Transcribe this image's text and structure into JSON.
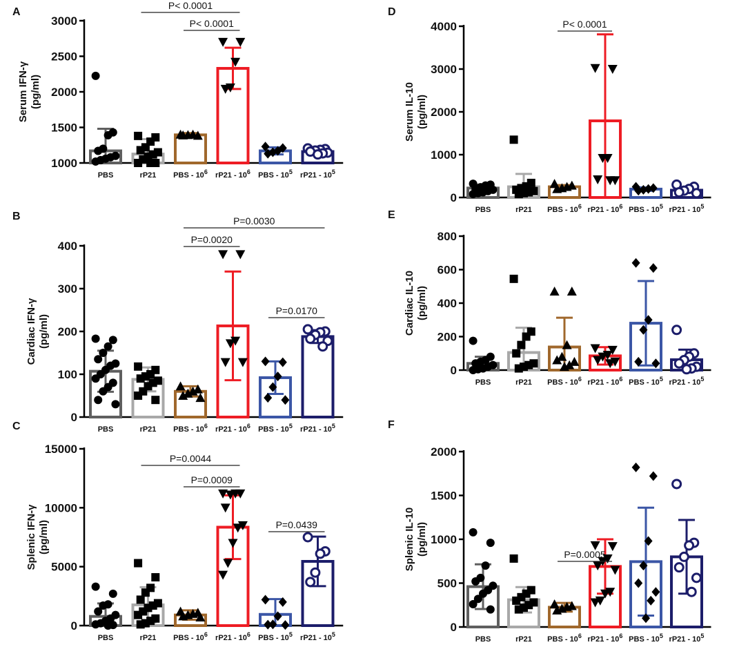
{
  "figure": {
    "categories": [
      "PBS",
      "rP21",
      "PBS - 10⁶",
      "rP21 - 10⁶",
      "PBS - 10⁵",
      "rP21 - 10⁵"
    ],
    "group_colors": [
      "#5f5f5f",
      "#a8a8a8",
      "#a0682c",
      "#ee1c24",
      "#3b56a6",
      "#1c1d6a"
    ],
    "markers": [
      "circle",
      "square",
      "triangle-up",
      "triangle-down",
      "diamond",
      "circle-open"
    ]
  },
  "chart_data": [
    {
      "id": "A",
      "type": "bar",
      "letter": "A",
      "ylabel": [
        "Serum IFN-γ",
        "(pg/ml)"
      ],
      "ylim": [
        1000,
        3000
      ],
      "yticks": [
        1000,
        1500,
        2000,
        2500,
        3000
      ],
      "base_value": 1000,
      "means": [
        1170,
        1125,
        1395,
        2330,
        1170,
        1160
      ],
      "sd": [
        310,
        210,
        25,
        290,
        50,
        40
      ],
      "points": [
        [
          2225,
          1430,
          1390,
          1200,
          1170,
          1100,
          1080,
          1060,
          1040,
          1020
        ],
        [
          1380,
          1360,
          1300,
          1220,
          1180,
          1150,
          1120,
          1090,
          1050,
          1000,
          980,
          960
        ],
        [
          1400,
          1385,
          1400,
          1395,
          1390
        ],
        [
          2700,
          2700,
          2420,
          2060,
          2040
        ],
        [
          1230,
          1210,
          1170,
          1150,
          1130
        ],
        [
          1205,
          1195,
          1185,
          1175,
          1160,
          1145,
          1135,
          1120
        ]
      ],
      "significance": [
        {
          "from": 1,
          "to": 3,
          "label": "P< 0.0001"
        },
        {
          "from": 2,
          "to": 3,
          "label": "P< 0.0001"
        }
      ]
    },
    {
      "id": "B",
      "type": "bar",
      "letter": "B",
      "ylabel": [
        "Cardiac IFN-γ",
        "(pg/ml)"
      ],
      "ylim": [
        0,
        400
      ],
      "yticks": [
        0,
        100,
        200,
        300,
        400
      ],
      "base_value": 0,
      "means": [
        107,
        88,
        60,
        213,
        92,
        188
      ],
      "sd": [
        48,
        28,
        12,
        127,
        38,
        15
      ],
      "points": [
        [
          183,
          180,
          165,
          150,
          135,
          125,
          120,
          110,
          100,
          90,
          80,
          70,
          60,
          40,
          30
        ],
        [
          118,
          110,
          100,
          95,
          90,
          85,
          80,
          72,
          60,
          50,
          40
        ],
        [
          72,
          65,
          60,
          55,
          50,
          45
        ],
        [
          380,
          380,
          178,
          172,
          128,
          128
        ],
        [
          130,
          128,
          95,
          70,
          45,
          40
        ],
        [
          205,
          200,
          198,
          192,
          183,
          178,
          165
        ]
      ],
      "significance": [
        {
          "from": 2,
          "to": 5,
          "label": "P=0.0030"
        },
        {
          "from": 2,
          "to": 3,
          "label": "P=0.0020"
        },
        {
          "from": 4,
          "to": 5,
          "label": "P=0.0170"
        }
      ]
    },
    {
      "id": "C",
      "type": "bar",
      "letter": "C",
      "ylabel": [
        "Splenic IFN-γ",
        "(pg/ml)"
      ],
      "ylim": [
        0,
        15000
      ],
      "yticks": [
        0,
        5000,
        10000,
        15000
      ],
      "base_value": 0,
      "means": [
        780,
        1760,
        900,
        8350,
        950,
        5450
      ],
      "sd": [
        1100,
        1500,
        400,
        2700,
        1300,
        2100
      ],
      "points": [
        [
          3300,
          2700,
          1800,
          1700,
          1200,
          900,
          600,
          400,
          200,
          100,
          50,
          0
        ],
        [
          5300,
          4100,
          3200,
          2800,
          2200,
          1900,
          1700,
          1500,
          1200,
          900,
          600,
          400,
          200,
          100
        ],
        [
          1200,
          1100,
          1000,
          900,
          800,
          700
        ],
        [
          11200,
          11200,
          11200,
          11100,
          10000,
          8500,
          8300,
          7000,
          5300,
          4300
        ],
        [
          2200,
          2000,
          800,
          100,
          80,
          50
        ],
        [
          7500,
          6300,
          6100,
          4500,
          3700
        ]
      ],
      "significance": [
        {
          "from": 1,
          "to": 3,
          "label": "P=0.0044"
        },
        {
          "from": 2,
          "to": 3,
          "label": "P=0.0009"
        },
        {
          "from": 4,
          "to": 5,
          "label": "P=0.0439"
        }
      ]
    },
    {
      "id": "D",
      "type": "bar",
      "letter": "D",
      "ylabel": [
        "Serum IL-10",
        "(pg/ml)"
      ],
      "ylim": [
        0,
        4000
      ],
      "yticks": [
        0,
        1000,
        2000,
        3000,
        4000
      ],
      "base_value": 0,
      "means": [
        220,
        250,
        250,
        1790,
        195,
        170
      ],
      "sd": [
        80,
        300,
        40,
        2020,
        40,
        60
      ],
      "points": [
        [
          320,
          300,
          280,
          240,
          200,
          180,
          150,
          120,
          100,
          80
        ],
        [
          1350,
          340,
          260,
          220,
          180,
          150,
          120,
          100,
          80
        ],
        [
          320,
          280,
          250,
          220,
          200
        ],
        [
          3020,
          3000,
          920,
          920,
          420,
          400,
          400
        ],
        [
          250,
          220,
          200,
          180,
          160
        ],
        [
          300,
          250,
          200,
          160,
          120,
          100
        ]
      ],
      "significance": [
        {
          "from": 2,
          "to": 3,
          "label": "P< 0.0001"
        }
      ]
    },
    {
      "id": "E",
      "type": "bar",
      "letter": "E",
      "ylabel": [
        "Cardiac IL-10",
        "(pg/ml)"
      ],
      "ylim": [
        0,
        800
      ],
      "yticks": [
        0,
        200,
        400,
        600,
        800
      ],
      "base_value": 0,
      "means": [
        40,
        105,
        138,
        85,
        280,
        62
      ],
      "sd": [
        40,
        148,
        175,
        52,
        252,
        60
      ],
      "points": [
        [
          175,
          80,
          60,
          50,
          40,
          30,
          20,
          10,
          5,
          0
        ],
        [
          545,
          230,
          200,
          150,
          100,
          40,
          30,
          20,
          10
        ],
        [
          470,
          470,
          150,
          80,
          60,
          50,
          30,
          20
        ],
        [
          130,
          120,
          90,
          80,
          60,
          50,
          40
        ],
        [
          640,
          610,
          300,
          240,
          50,
          40
        ],
        [
          240,
          100,
          80,
          60,
          40,
          20,
          10,
          5
        ]
      ],
      "significance": []
    },
    {
      "id": "F",
      "type": "bar",
      "letter": "F",
      "ylabel": [
        "Splenic IL-10",
        "(pg/ml)"
      ],
      "ylim": [
        0,
        2000
      ],
      "yticks": [
        0,
        500,
        1000,
        1500,
        2000
      ],
      "base_value": 0,
      "means": [
        460,
        310,
        225,
        690,
        745,
        800
      ],
      "sd": [
        255,
        145,
        50,
        310,
        615,
        420
      ],
      "points": [
        [
          1080,
          960,
          700,
          560,
          520,
          470,
          420,
          380,
          320,
          260,
          200
        ],
        [
          780,
          420,
          380,
          340,
          300,
          280,
          250,
          220,
          200
        ],
        [
          260,
          240,
          230,
          210,
          190
        ],
        [
          930,
          920,
          780,
          750,
          700,
          650,
          400,
          380,
          300,
          280
        ],
        [
          1820,
          1720,
          980,
          700,
          500,
          400,
          300,
          100
        ],
        [
          1630,
          960,
          930,
          800,
          680,
          560,
          400
        ]
      ],
      "significance": [
        {
          "from": 2,
          "to": 3,
          "label": "P=0.0005"
        }
      ]
    }
  ]
}
